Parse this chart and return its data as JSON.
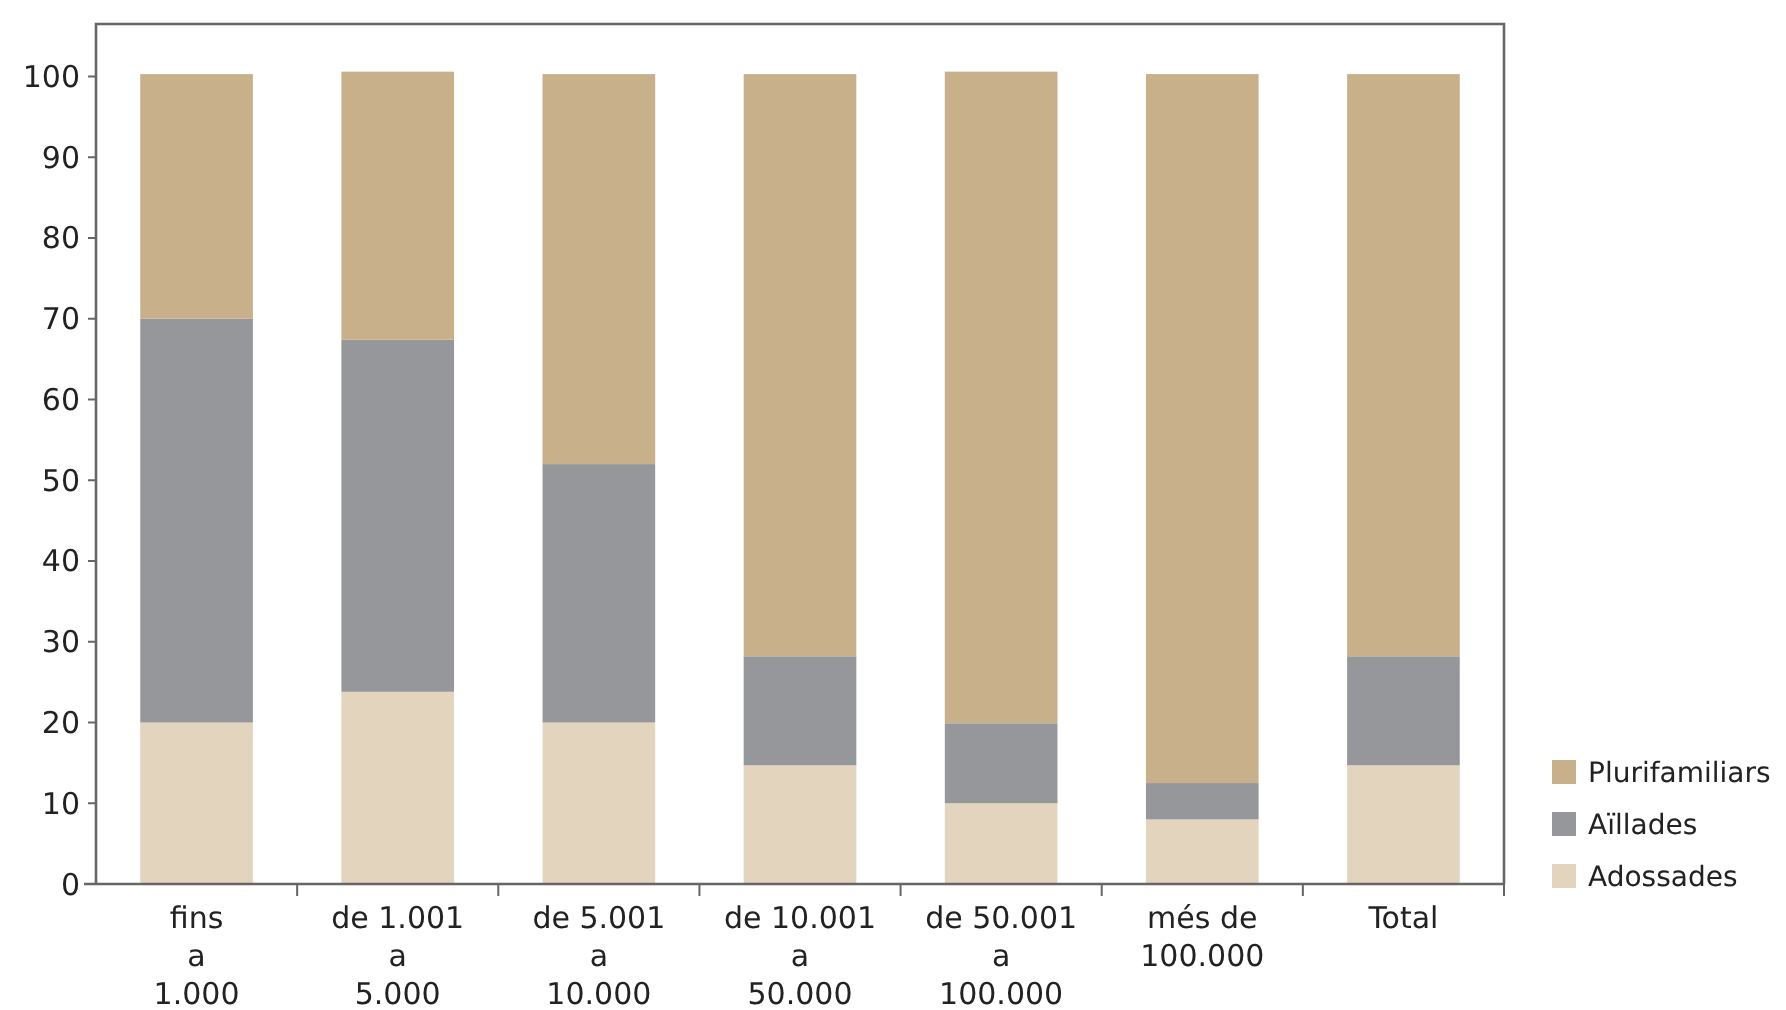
{
  "chart_data": {
    "type": "bar",
    "stacked": true,
    "categories": [
      "fins\na\n1.000",
      "de 1.001\na\n5.000",
      "de 5.001\na\n10.000",
      "de 10.001\na\n50.000",
      "de 50.001\na\n100.000",
      "més de\n100.000",
      "Total"
    ],
    "series": [
      {
        "name": "Adossades",
        "color": "#e2d4bd",
        "values": [
          20,
          23.8,
          20,
          14.7,
          10,
          8,
          14.7
        ]
      },
      {
        "name": "Aïllades",
        "color": "#96979b",
        "values": [
          50,
          43.6,
          32,
          13.5,
          9.9,
          4.5,
          13.5
        ]
      },
      {
        "name": "Plurifamiliars",
        "color": "#c8b08a",
        "values": [
          30.3,
          33.2,
          48.3,
          72.1,
          80.7,
          87.8,
          72.1
        ]
      }
    ],
    "ylim": [
      0,
      106.5
    ],
    "yticks": [
      0,
      10,
      20,
      30,
      40,
      50,
      60,
      70,
      80,
      90,
      100
    ],
    "legend": "right",
    "grid": false
  }
}
